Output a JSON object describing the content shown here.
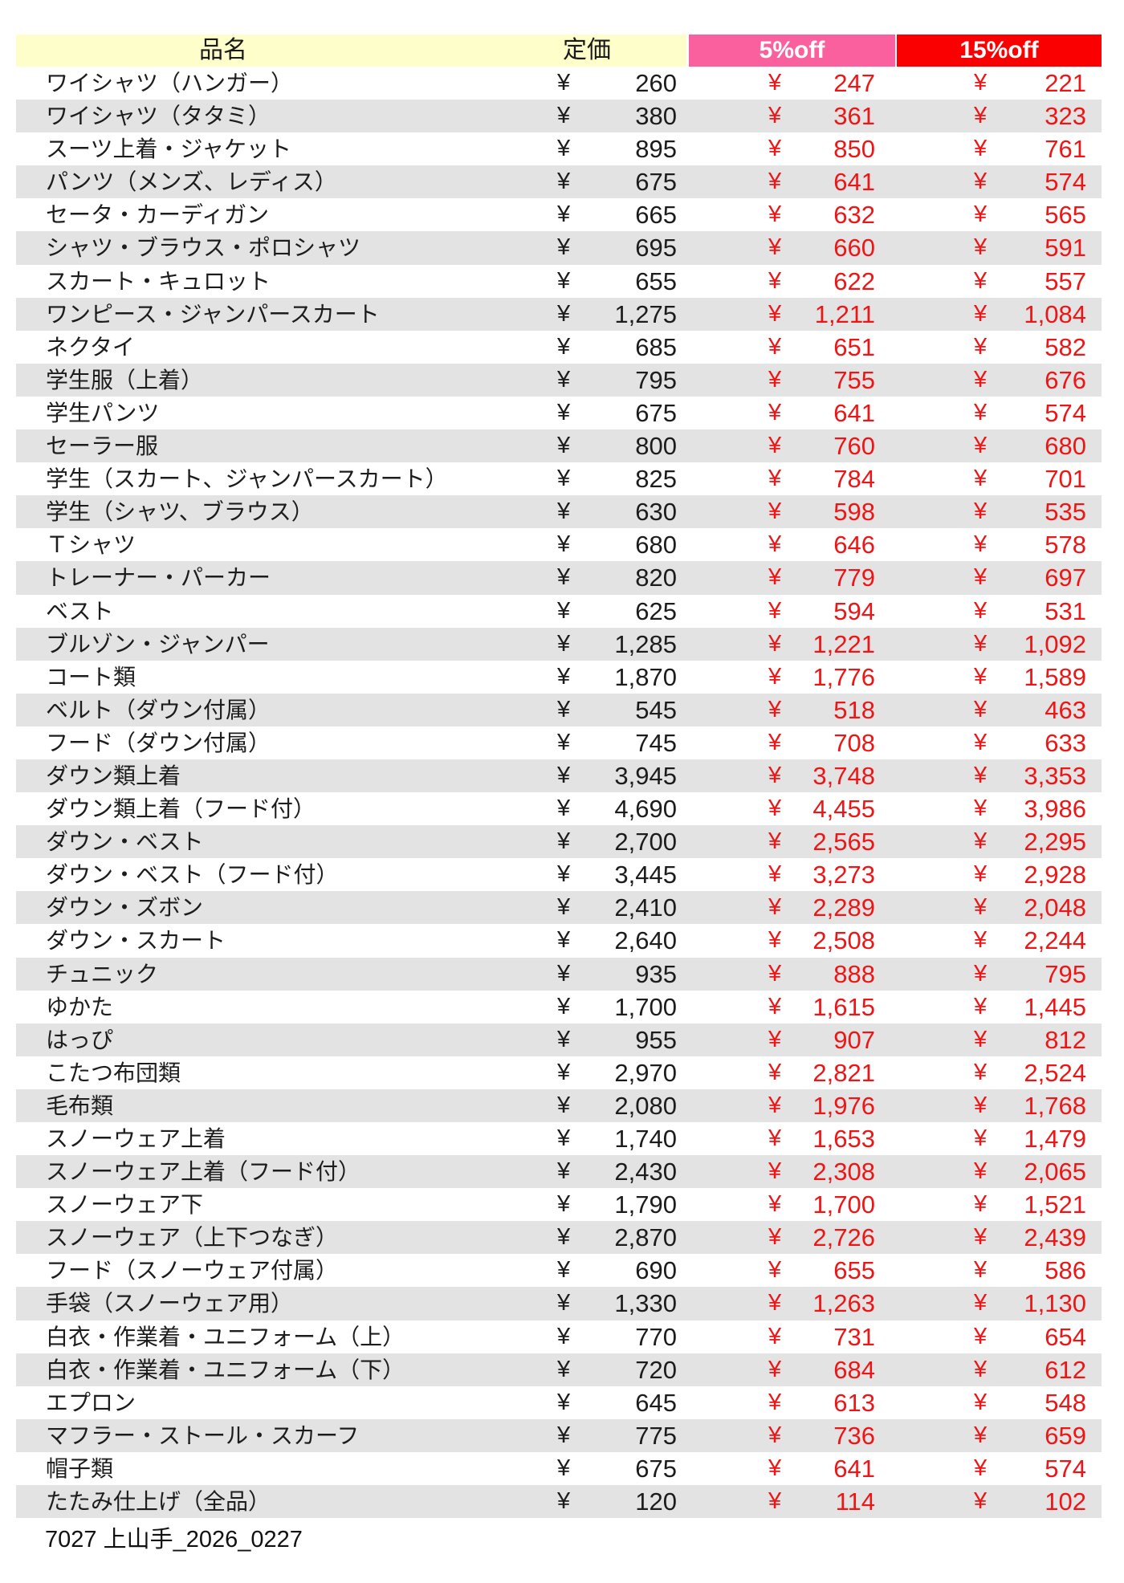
{
  "header": {
    "item_label": "品名",
    "list_price_label": "定価",
    "off5_label": "5%off",
    "off15_label": "15%off"
  },
  "currency": "¥",
  "rows": [
    {
      "name": "ワイシャツ（ハンガー）",
      "price": "260",
      "off5": "247",
      "off15": "221"
    },
    {
      "name": "ワイシャツ（タタミ）",
      "price": "380",
      "off5": "361",
      "off15": "323"
    },
    {
      "name": "スーツ上着・ジャケット",
      "price": "895",
      "off5": "850",
      "off15": "761"
    },
    {
      "name": "パンツ（メンズ、レディス）",
      "price": "675",
      "off5": "641",
      "off15": "574"
    },
    {
      "name": "セータ・カーディガン",
      "price": "665",
      "off5": "632",
      "off15": "565"
    },
    {
      "name": "シャツ・ブラウス・ポロシャツ",
      "price": "695",
      "off5": "660",
      "off15": "591"
    },
    {
      "name": "スカート・キュロット",
      "price": "655",
      "off5": "622",
      "off15": "557"
    },
    {
      "name": "ワンピース・ジャンパースカート",
      "price": "1,275",
      "off5": "1,211",
      "off15": "1,084"
    },
    {
      "name": "ネクタイ",
      "price": "685",
      "off5": "651",
      "off15": "582"
    },
    {
      "name": "学生服（上着）",
      "price": "795",
      "off5": "755",
      "off15": "676"
    },
    {
      "name": "学生パンツ",
      "price": "675",
      "off5": "641",
      "off15": "574"
    },
    {
      "name": "セーラー服",
      "price": "800",
      "off5": "760",
      "off15": "680"
    },
    {
      "name": "学生（スカート、ジャンパースカート）",
      "price": "825",
      "off5": "784",
      "off15": "701"
    },
    {
      "name": "学生（シャツ、ブラウス）",
      "price": "630",
      "off5": "598",
      "off15": "535"
    },
    {
      "name": "Ｔシャツ",
      "price": "680",
      "off5": "646",
      "off15": "578"
    },
    {
      "name": "トレーナー・パーカー",
      "price": "820",
      "off5": "779",
      "off15": "697"
    },
    {
      "name": "ベスト",
      "price": "625",
      "off5": "594",
      "off15": "531"
    },
    {
      "name": "ブルゾン・ジャンパー",
      "price": "1,285",
      "off5": "1,221",
      "off15": "1,092"
    },
    {
      "name": "コート類",
      "price": "1,870",
      "off5": "1,776",
      "off15": "1,589"
    },
    {
      "name": "ベルト（ダウン付属）",
      "price": "545",
      "off5": "518",
      "off15": "463"
    },
    {
      "name": "フード（ダウン付属）",
      "price": "745",
      "off5": "708",
      "off15": "633"
    },
    {
      "name": "ダウン類上着",
      "price": "3,945",
      "off5": "3,748",
      "off15": "3,353"
    },
    {
      "name": "ダウン類上着（フード付）",
      "price": "4,690",
      "off5": "4,455",
      "off15": "3,986"
    },
    {
      "name": "ダウン・ベスト",
      "price": "2,700",
      "off5": "2,565",
      "off15": "2,295"
    },
    {
      "name": "ダウン・ベスト（フード付）",
      "price": "3,445",
      "off5": "3,273",
      "off15": "2,928"
    },
    {
      "name": "ダウン・ズボン",
      "price": "2,410",
      "off5": "2,289",
      "off15": "2,048"
    },
    {
      "name": "ダウン・スカート",
      "price": "2,640",
      "off5": "2,508",
      "off15": "2,244"
    },
    {
      "name": "チュニック",
      "price": "935",
      "off5": "888",
      "off15": "795"
    },
    {
      "name": "ゆかた",
      "price": "1,700",
      "off5": "1,615",
      "off15": "1,445"
    },
    {
      "name": "はっぴ",
      "price": "955",
      "off5": "907",
      "off15": "812"
    },
    {
      "name": "こたつ布団類",
      "price": "2,970",
      "off5": "2,821",
      "off15": "2,524"
    },
    {
      "name": "毛布類",
      "price": "2,080",
      "off5": "1,976",
      "off15": "1,768"
    },
    {
      "name": "スノーウェア上着",
      "price": "1,740",
      "off5": "1,653",
      "off15": "1,479"
    },
    {
      "name": "スノーウェア上着（フード付）",
      "price": "2,430",
      "off5": "2,308",
      "off15": "2,065"
    },
    {
      "name": "スノーウェア下",
      "price": "1,790",
      "off5": "1,700",
      "off15": "1,521"
    },
    {
      "name": "スノーウェア（上下つなぎ）",
      "price": "2,870",
      "off5": "2,726",
      "off15": "2,439"
    },
    {
      "name": "フード（スノーウェア付属）",
      "price": "690",
      "off5": "655",
      "off15": "586"
    },
    {
      "name": "手袋（スノーウェア用）",
      "price": "1,330",
      "off5": "1,263",
      "off15": "1,130"
    },
    {
      "name": "白衣・作業着・ユニフォーム（上）",
      "price": "770",
      "off5": "731",
      "off15": "654"
    },
    {
      "name": "白衣・作業着・ユニフォーム（下）",
      "price": "720",
      "off5": "684",
      "off15": "612"
    },
    {
      "name": "エプロン",
      "price": "645",
      "off5": "613",
      "off15": "548"
    },
    {
      "name": "マフラー・ストール・スカーフ",
      "price": "775",
      "off5": "736",
      "off15": "659"
    },
    {
      "name": "帽子類",
      "price": "675",
      "off5": "641",
      "off15": "574"
    },
    {
      "name": "たたみ仕上げ（全品）",
      "price": "120",
      "off5": "114",
      "off15": "102"
    }
  ],
  "footer": {
    "note": "7027 上山手_2026_0227"
  },
  "colors": {
    "header_yellow": "#FEFECB",
    "header_pink": "#FA609E",
    "header_red": "#FA0000",
    "stripe_gray": "#E3E3E3",
    "price_red": "#ED1515",
    "text_black": "#1C1C1C"
  }
}
